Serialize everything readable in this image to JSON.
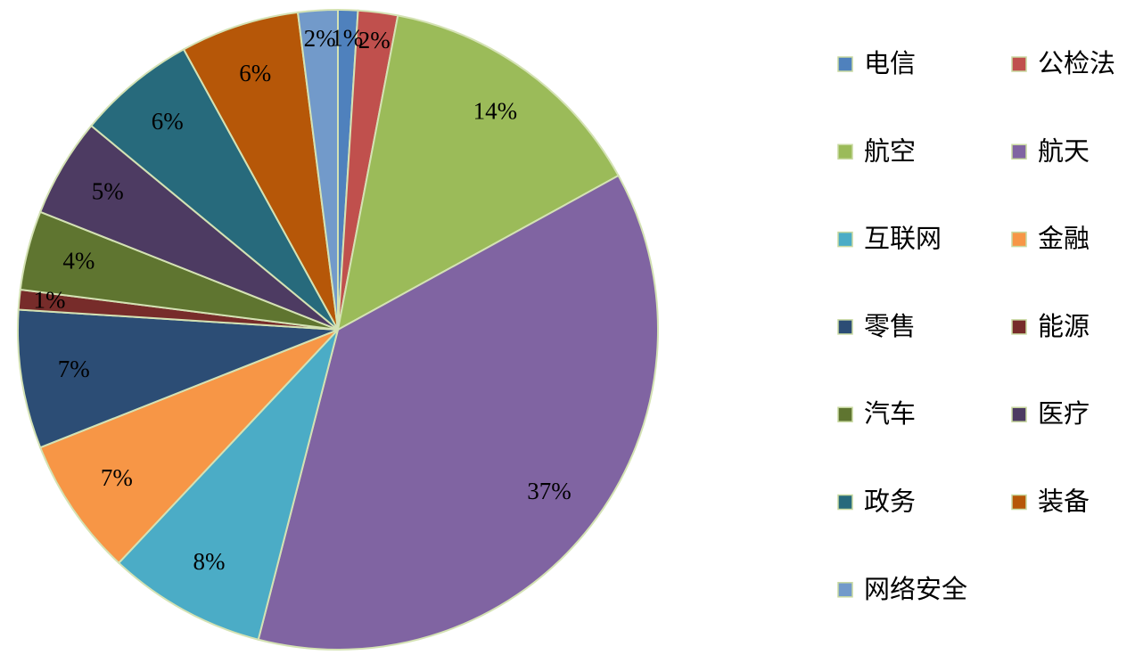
{
  "chart_data": {
    "type": "pie",
    "categories": [
      "电信",
      "公检法",
      "航空",
      "航天",
      "互联网",
      "金融",
      "零售",
      "能源",
      "汽车",
      "医疗",
      "政务",
      "装备",
      "网络安全"
    ],
    "values": [
      1,
      2,
      14,
      37,
      8,
      7,
      7,
      1,
      4,
      5,
      6,
      6,
      2
    ],
    "value_labels": [
      "1%",
      "2%",
      "14%",
      "37%",
      "8%",
      "7%",
      "7%",
      "1%",
      "4%",
      "5%",
      "6%",
      "6%",
      "2%"
    ],
    "colors": [
      "#4f81bd",
      "#c0504d",
      "#9bbb59",
      "#8064a2",
      "#4bacc6",
      "#f79646",
      "#2c4d75",
      "#772c2a",
      "#5f7530",
      "#4d3b62",
      "#276a7c",
      "#b65708",
      "#729aca"
    ],
    "legend": "right"
  }
}
